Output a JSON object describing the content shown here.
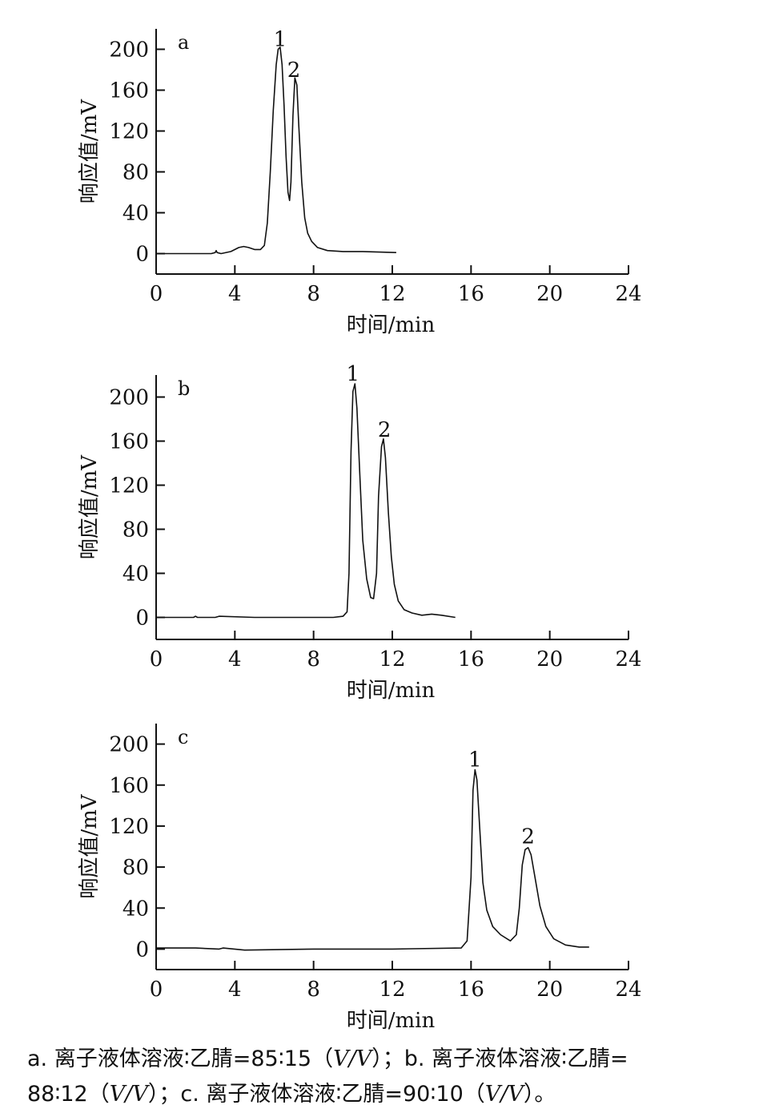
{
  "chart_data": [
    {
      "type": "line",
      "panel_label": "a",
      "xlabel": "时间/min",
      "ylabel": "响应值/mV",
      "xlim": [
        0,
        24
      ],
      "ylim": [
        -20,
        220
      ],
      "xticks": [
        "0",
        "4",
        "8",
        "12",
        "16",
        "20",
        "24"
      ],
      "yticks": [
        "0",
        "40",
        "80",
        "120",
        "160",
        "200"
      ],
      "peak_labels": [
        {
          "text": "1",
          "x": 6.3,
          "y": 203
        },
        {
          "text": "2",
          "x": 7.0,
          "y": 173
        }
      ],
      "series": [
        {
          "x": [
            0,
            2.8,
            3.0,
            3.05,
            3.1,
            3.3,
            3.8,
            4.2,
            4.45,
            4.7,
            5.0,
            5.3,
            5.5,
            5.65,
            5.8,
            5.95,
            6.1,
            6.2,
            6.3,
            6.4,
            6.5,
            6.6,
            6.7,
            6.78,
            6.85,
            6.95,
            7.05,
            7.15,
            7.25,
            7.4,
            7.55,
            7.7,
            7.9,
            8.2,
            8.7,
            9.5,
            10.5,
            12.2
          ],
          "y": [
            0,
            0,
            1,
            3,
            1,
            0,
            2,
            6,
            7,
            6,
            4,
            4,
            8,
            30,
            80,
            140,
            185,
            200,
            202,
            185,
            145,
            95,
            60,
            52,
            70,
            135,
            172,
            165,
            125,
            70,
            35,
            20,
            12,
            6,
            3,
            2,
            2,
            1
          ]
        }
      ]
    },
    {
      "type": "line",
      "panel_label": "b",
      "xlabel": "时间/min",
      "ylabel": "响应值/mV",
      "xlim": [
        0,
        24
      ],
      "ylim": [
        -20,
        220
      ],
      "xticks": [
        "0",
        "4",
        "8",
        "12",
        "16",
        "20",
        "24"
      ],
      "yticks": [
        "0",
        "40",
        "80",
        "120",
        "160",
        "200"
      ],
      "peak_labels": [
        {
          "text": "1",
          "x": 10.0,
          "y": 215
        },
        {
          "text": "2",
          "x": 11.6,
          "y": 164
        }
      ],
      "series": [
        {
          "x": [
            0,
            1.9,
            2.0,
            2.1,
            3.0,
            3.2,
            5.0,
            7.0,
            9.0,
            9.5,
            9.7,
            9.8,
            9.9,
            10.0,
            10.1,
            10.2,
            10.35,
            10.5,
            10.7,
            10.9,
            11.05,
            11.2,
            11.3,
            11.45,
            11.55,
            11.65,
            11.8,
            11.95,
            12.1,
            12.3,
            12.6,
            13.0,
            13.5,
            14.0,
            14.5,
            15.2
          ],
          "y": [
            0,
            0,
            1,
            0,
            0,
            1,
            0,
            0,
            0,
            1,
            5,
            40,
            150,
            205,
            212,
            190,
            130,
            70,
            35,
            18,
            17,
            40,
            110,
            155,
            162,
            145,
            95,
            55,
            30,
            15,
            7,
            4,
            2,
            3,
            2,
            0
          ]
        }
      ]
    },
    {
      "type": "line",
      "panel_label": "c",
      "xlabel": "时间/min",
      "ylabel": "响应值/mV",
      "xlim": [
        0,
        24
      ],
      "ylim": [
        -20,
        220
      ],
      "xticks": [
        "0",
        "4",
        "8",
        "12",
        "16",
        "20",
        "24"
      ],
      "yticks": [
        "0",
        "40",
        "80",
        "120",
        "160",
        "200"
      ],
      "peak_labels": [
        {
          "text": "1",
          "x": 16.2,
          "y": 178
        },
        {
          "text": "2",
          "x": 18.9,
          "y": 103
        }
      ],
      "series": [
        {
          "x": [
            0,
            2.0,
            3.2,
            3.4,
            4.5,
            8.0,
            12.0,
            15.5,
            15.8,
            16.0,
            16.1,
            16.2,
            16.3,
            16.45,
            16.6,
            16.8,
            17.1,
            17.5,
            18.0,
            18.3,
            18.45,
            18.6,
            18.75,
            18.9,
            19.05,
            19.25,
            19.5,
            19.8,
            20.2,
            20.8,
            21.5,
            22.0
          ],
          "y": [
            1,
            1,
            0,
            1,
            -1,
            0,
            0,
            1,
            8,
            70,
            155,
            175,
            165,
            115,
            65,
            38,
            22,
            14,
            8,
            14,
            40,
            82,
            97,
            99,
            92,
            70,
            42,
            22,
            10,
            4,
            2,
            2
          ]
        }
      ]
    }
  ],
  "caption": {
    "part1": "a. 离子液体溶液∶乙腈=85∶15（",
    "italic1": "V/V",
    "part2": "）；b. 离子液体溶液∶乙腈=",
    "part3": "88∶12（",
    "italic2": "V/V",
    "part4": "）；c. 离子液体溶液∶乙腈=90∶10（",
    "italic3": "V/V",
    "part5": "）。"
  }
}
